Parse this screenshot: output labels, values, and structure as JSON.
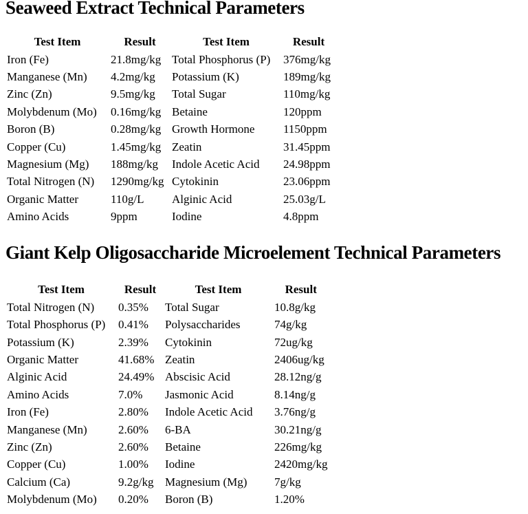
{
  "page": {
    "background_color": "#ffffff",
    "text_color": "#000000"
  },
  "section1": {
    "title": "Seaweed Extract Technical Parameters",
    "headers": [
      "Test Item",
      "Result",
      "Test Item",
      "Result"
    ],
    "rows": [
      [
        "Iron (Fe)",
        "21.8mg/kg",
        "Total Phosphorus (P)",
        "376mg/kg"
      ],
      [
        "Manganese (Mn)",
        "4.2mg/kg",
        "Potassium (K)",
        "189mg/kg"
      ],
      [
        "Zinc (Zn)",
        "9.5mg/kg",
        "Total Sugar",
        "110mg/kg"
      ],
      [
        "Molybdenum (Mo)",
        "0.16mg/kg",
        "Betaine",
        "120ppm"
      ],
      [
        "Boron (B)",
        "0.28mg/kg",
        "Growth Hormone",
        "1150ppm"
      ],
      [
        "Copper (Cu)",
        "1.45mg/kg",
        "Zeatin",
        "31.45ppm"
      ],
      [
        "Magnesium (Mg)",
        "188mg/kg",
        "Indole Acetic Acid",
        "24.98ppm"
      ],
      [
        "Total Nitrogen (N)",
        "1290mg/kg",
        "Cytokinin",
        "23.06ppm"
      ],
      [
        "Organic Matter",
        "110g/L",
        "Alginic Acid",
        "25.03g/L"
      ],
      [
        "Amino Acids",
        "9ppm",
        "Iodine",
        "4.8ppm"
      ]
    ]
  },
  "section2": {
    "title": "Giant Kelp Oligosaccharide Microelement Technical Parameters",
    "headers": [
      "Test Item",
      "Result",
      "Test Item",
      "Result"
    ],
    "rows": [
      [
        "Total Nitrogen (N)",
        "0.35%",
        "Total Sugar",
        "10.8g/kg"
      ],
      [
        "Total Phosphorus (P)",
        "0.41%",
        "Polysaccharides",
        "74g/kg"
      ],
      [
        "Potassium (K)",
        "2.39%",
        "Cytokinin",
        "72ug/kg"
      ],
      [
        "Organic Matter",
        "41.68%",
        "Zeatin",
        "2406ug/kg"
      ],
      [
        "Alginic Acid",
        "24.49%",
        "Abscisic Acid",
        "28.12ng/g"
      ],
      [
        "Amino Acids",
        "7.0%",
        "Jasmonic Acid",
        "8.14ng/g"
      ],
      [
        "Iron (Fe)",
        "2.80%",
        "Indole Acetic Acid",
        "3.76ng/g"
      ],
      [
        "Manganese (Mn)",
        "2.60%",
        "6-BA",
        "30.21ng/g"
      ],
      [
        "Zinc (Zn)",
        "2.60%",
        "Betaine",
        "226mg/kg"
      ],
      [
        "Copper (Cu)",
        "1.00%",
        "Iodine",
        "2420mg/kg"
      ],
      [
        "Calcium (Ca)",
        "9.2g/kg",
        "Magnesium (Mg)",
        "7g/kg"
      ],
      [
        "Molybdenum (Mo)",
        "0.20%",
        "Boron (B)",
        "1.20%"
      ]
    ]
  }
}
